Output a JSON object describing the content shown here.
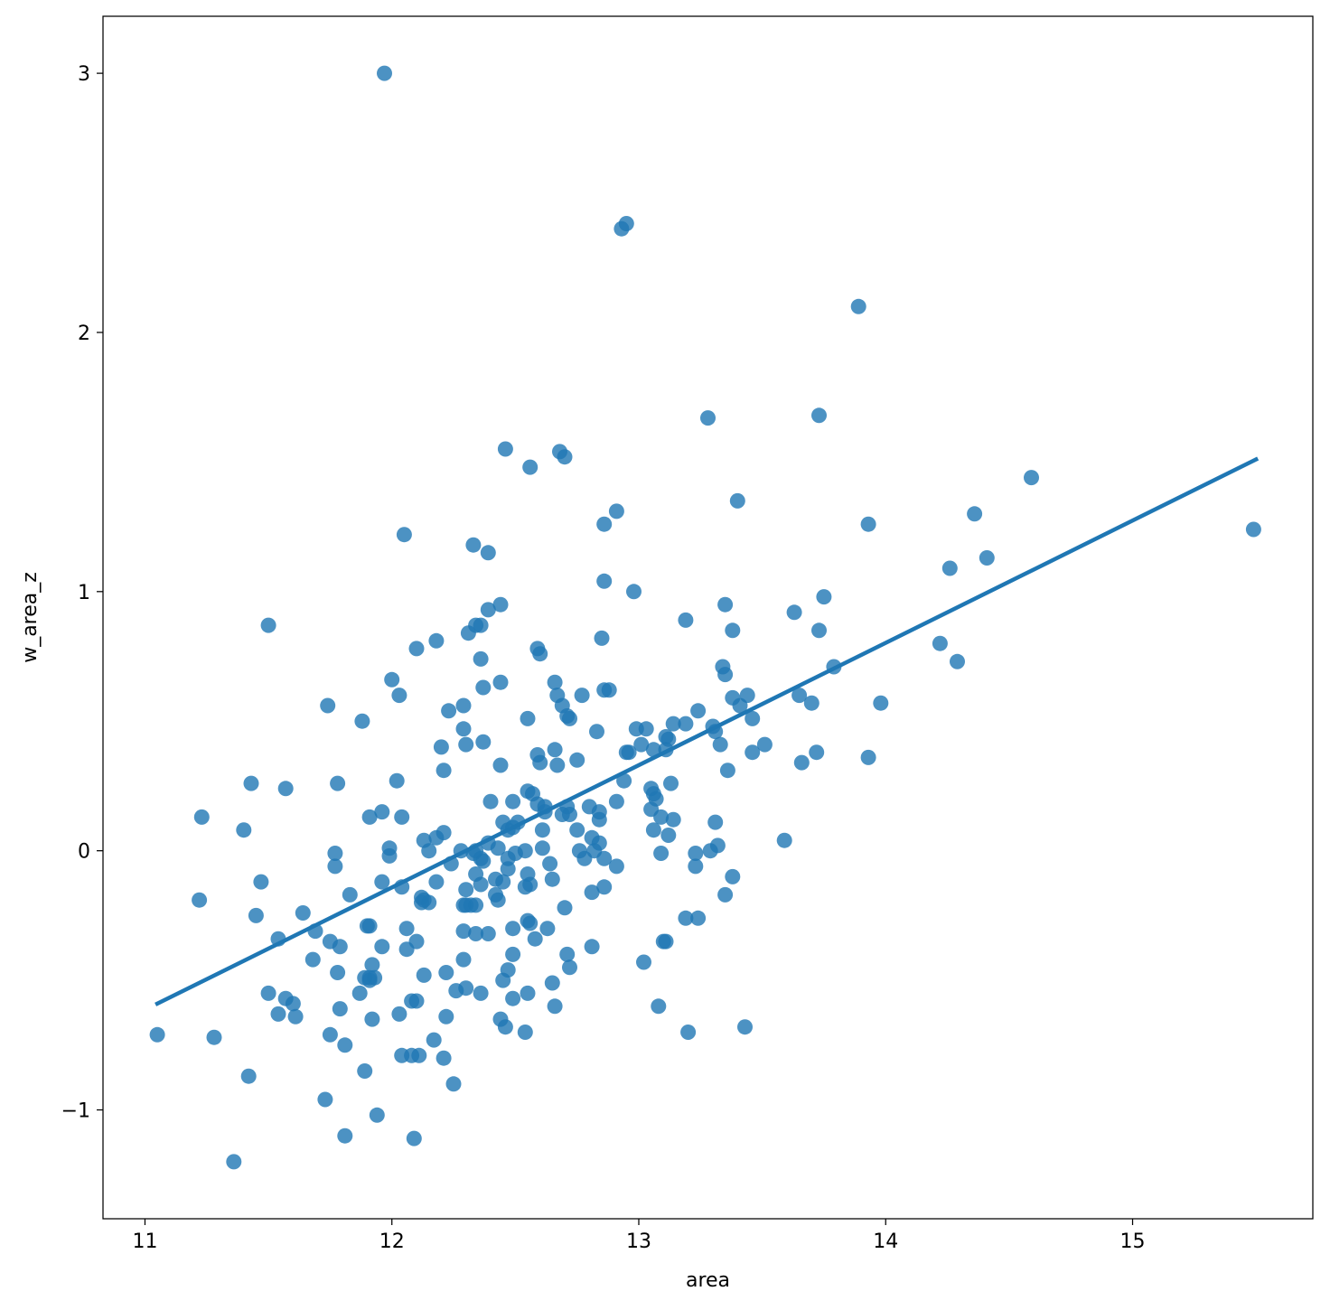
{
  "chart_data": {
    "type": "scatter",
    "xlabel": "area",
    "ylabel": "w_area_z",
    "xlim": [
      10.83,
      15.73
    ],
    "ylim": [
      -1.42,
      3.22
    ],
    "x_ticks": [
      11,
      12,
      13,
      14,
      15
    ],
    "y_ticks": [
      -1,
      0,
      1,
      2,
      3
    ],
    "x_tick_labels": [
      "11",
      "12",
      "13",
      "14",
      "15"
    ],
    "y_tick_labels": [
      "−1",
      "0",
      "1",
      "2",
      "3"
    ],
    "grid": false,
    "colors": {
      "points": "#1f77b4",
      "line": "#1f77b4"
    },
    "regression_line": {
      "x": [
        11.05,
        15.5
      ],
      "y": [
        -0.59,
        1.51
      ]
    },
    "points": [
      [
        11.97,
        3.0
      ],
      [
        12.93,
        2.4
      ],
      [
        12.95,
        2.42
      ],
      [
        13.89,
        2.1
      ],
      [
        13.28,
        1.67
      ],
      [
        13.73,
        1.68
      ],
      [
        12.46,
        1.55
      ],
      [
        12.68,
        1.54
      ],
      [
        12.7,
        1.52
      ],
      [
        12.56,
        1.48
      ],
      [
        14.59,
        1.44
      ],
      [
        13.4,
        1.35
      ],
      [
        12.91,
        1.31
      ],
      [
        14.36,
        1.3
      ],
      [
        12.86,
        1.26
      ],
      [
        13.93,
        1.26
      ],
      [
        15.49,
        1.24
      ],
      [
        12.05,
        1.22
      ],
      [
        12.33,
        1.18
      ],
      [
        12.39,
        1.15
      ],
      [
        14.41,
        1.13
      ],
      [
        14.26,
        1.09
      ],
      [
        12.86,
        1.04
      ],
      [
        12.98,
        1.0
      ],
      [
        13.75,
        0.98
      ],
      [
        13.35,
        0.95
      ],
      [
        12.44,
        0.95
      ],
      [
        12.39,
        0.93
      ],
      [
        13.63,
        0.92
      ],
      [
        13.19,
        0.89
      ],
      [
        11.5,
        0.87
      ],
      [
        12.34,
        0.87
      ],
      [
        12.36,
        0.87
      ],
      [
        13.38,
        0.85
      ],
      [
        13.73,
        0.85
      ],
      [
        12.31,
        0.84
      ],
      [
        12.85,
        0.82
      ],
      [
        12.18,
        0.81
      ],
      [
        14.22,
        0.8
      ],
      [
        12.1,
        0.78
      ],
      [
        12.59,
        0.78
      ],
      [
        12.6,
        0.76
      ],
      [
        12.36,
        0.74
      ],
      [
        14.29,
        0.73
      ],
      [
        13.79,
        0.71
      ],
      [
        13.34,
        0.71
      ],
      [
        13.35,
        0.68
      ],
      [
        12.0,
        0.66
      ],
      [
        12.66,
        0.65
      ],
      [
        12.44,
        0.65
      ],
      [
        12.37,
        0.63
      ],
      [
        12.86,
        0.62
      ],
      [
        12.88,
        0.62
      ],
      [
        12.67,
        0.6
      ],
      [
        12.77,
        0.6
      ],
      [
        13.44,
        0.6
      ],
      [
        13.65,
        0.6
      ],
      [
        12.03,
        0.6
      ],
      [
        13.38,
        0.59
      ],
      [
        11.74,
        0.56
      ],
      [
        12.69,
        0.56
      ],
      [
        13.98,
        0.57
      ],
      [
        13.7,
        0.57
      ],
      [
        13.41,
        0.56
      ],
      [
        12.29,
        0.56
      ],
      [
        12.23,
        0.54
      ],
      [
        13.24,
        0.54
      ],
      [
        12.71,
        0.52
      ],
      [
        12.72,
        0.51
      ],
      [
        12.55,
        0.51
      ],
      [
        13.46,
        0.51
      ],
      [
        11.88,
        0.5
      ],
      [
        13.14,
        0.49
      ],
      [
        13.19,
        0.49
      ],
      [
        13.3,
        0.48
      ],
      [
        12.99,
        0.47
      ],
      [
        13.03,
        0.47
      ],
      [
        12.29,
        0.47
      ],
      [
        12.83,
        0.46
      ],
      [
        13.31,
        0.46
      ],
      [
        13.11,
        0.44
      ],
      [
        13.12,
        0.43
      ],
      [
        12.3,
        0.41
      ],
      [
        12.37,
        0.42
      ],
      [
        13.51,
        0.41
      ],
      [
        13.33,
        0.41
      ],
      [
        13.01,
        0.41
      ],
      [
        12.2,
        0.4
      ],
      [
        12.66,
        0.39
      ],
      [
        12.96,
        0.38
      ],
      [
        12.95,
        0.38
      ],
      [
        13.11,
        0.39
      ],
      [
        13.06,
        0.39
      ],
      [
        12.59,
        0.37
      ],
      [
        13.46,
        0.38
      ],
      [
        13.72,
        0.38
      ],
      [
        12.75,
        0.35
      ],
      [
        13.93,
        0.36
      ],
      [
        12.6,
        0.34
      ],
      [
        12.67,
        0.33
      ],
      [
        12.44,
        0.33
      ],
      [
        13.66,
        0.34
      ],
      [
        12.21,
        0.31
      ],
      [
        13.36,
        0.31
      ],
      [
        11.43,
        0.26
      ],
      [
        11.78,
        0.26
      ],
      [
        12.02,
        0.27
      ],
      [
        12.94,
        0.27
      ],
      [
        13.13,
        0.26
      ],
      [
        11.57,
        0.24
      ],
      [
        13.05,
        0.24
      ],
      [
        12.55,
        0.23
      ],
      [
        12.57,
        0.22
      ],
      [
        13.06,
        0.22
      ],
      [
        13.07,
        0.2
      ],
      [
        12.4,
        0.19
      ],
      [
        12.49,
        0.19
      ],
      [
        12.91,
        0.19
      ],
      [
        12.59,
        0.18
      ],
      [
        12.62,
        0.17
      ],
      [
        12.8,
        0.17
      ],
      [
        12.71,
        0.17
      ],
      [
        13.05,
        0.16
      ],
      [
        12.84,
        0.15
      ],
      [
        12.62,
        0.15
      ],
      [
        12.69,
        0.14
      ],
      [
        11.23,
        0.13
      ],
      [
        11.91,
        0.13
      ],
      [
        11.96,
        0.15
      ],
      [
        12.04,
        0.13
      ],
      [
        13.09,
        0.13
      ],
      [
        13.14,
        0.12
      ],
      [
        12.72,
        0.14
      ],
      [
        12.84,
        0.12
      ],
      [
        12.45,
        0.11
      ],
      [
        12.51,
        0.11
      ],
      [
        13.31,
        0.11
      ],
      [
        11.4,
        0.08
      ],
      [
        12.47,
        0.08
      ],
      [
        12.49,
        0.09
      ],
      [
        12.61,
        0.08
      ],
      [
        12.75,
        0.08
      ],
      [
        13.06,
        0.08
      ],
      [
        12.18,
        0.05
      ],
      [
        12.21,
        0.07
      ],
      [
        12.13,
        0.04
      ],
      [
        12.81,
        0.05
      ],
      [
        12.39,
        0.03
      ],
      [
        13.12,
        0.06
      ],
      [
        13.59,
        0.04
      ],
      [
        12.84,
        0.03
      ],
      [
        13.32,
        0.02
      ],
      [
        11.99,
        0.01
      ],
      [
        12.43,
        0.01
      ],
      [
        12.54,
        0.0
      ],
      [
        12.76,
        0.0
      ],
      [
        12.82,
        0.0
      ],
      [
        12.61,
        0.01
      ],
      [
        13.29,
        0.0
      ],
      [
        12.15,
        0.0
      ],
      [
        12.28,
        0.0
      ],
      [
        12.34,
        0.0
      ],
      [
        11.77,
        -0.01
      ],
      [
        11.99,
        -0.02
      ],
      [
        12.36,
        -0.03
      ],
      [
        12.47,
        -0.03
      ],
      [
        12.86,
        -0.03
      ],
      [
        12.78,
        -0.03
      ],
      [
        13.09,
        -0.01
      ],
      [
        13.23,
        -0.01
      ],
      [
        12.33,
        -0.01
      ],
      [
        12.5,
        -0.01
      ],
      [
        12.37,
        -0.04
      ],
      [
        12.24,
        -0.05
      ],
      [
        12.64,
        -0.05
      ],
      [
        11.77,
        -0.06
      ],
      [
        12.47,
        -0.07
      ],
      [
        12.91,
        -0.06
      ],
      [
        13.23,
        -0.06
      ],
      [
        12.34,
        -0.09
      ],
      [
        12.55,
        -0.09
      ],
      [
        12.42,
        -0.11
      ],
      [
        11.47,
        -0.12
      ],
      [
        11.96,
        -0.12
      ],
      [
        12.18,
        -0.12
      ],
      [
        12.56,
        -0.13
      ],
      [
        12.36,
        -0.13
      ],
      [
        12.65,
        -0.11
      ],
      [
        13.38,
        -0.1
      ],
      [
        12.45,
        -0.12
      ],
      [
        12.04,
        -0.14
      ],
      [
        12.3,
        -0.15
      ],
      [
        12.54,
        -0.14
      ],
      [
        12.86,
        -0.14
      ],
      [
        11.22,
        -0.19
      ],
      [
        11.83,
        -0.17
      ],
      [
        12.12,
        -0.18
      ],
      [
        12.13,
        -0.19
      ],
      [
        12.81,
        -0.16
      ],
      [
        13.35,
        -0.17
      ],
      [
        12.12,
        -0.2
      ],
      [
        12.15,
        -0.2
      ],
      [
        12.43,
        -0.19
      ],
      [
        12.42,
        -0.17
      ],
      [
        12.3,
        -0.21
      ],
      [
        12.32,
        -0.21
      ],
      [
        12.29,
        -0.21
      ],
      [
        12.7,
        -0.22
      ],
      [
        12.34,
        -0.21
      ],
      [
        11.45,
        -0.25
      ],
      [
        11.64,
        -0.24
      ],
      [
        12.55,
        -0.27
      ],
      [
        12.56,
        -0.28
      ],
      [
        13.19,
        -0.26
      ],
      [
        13.24,
        -0.26
      ],
      [
        11.9,
        -0.29
      ],
      [
        11.91,
        -0.29
      ],
      [
        12.06,
        -0.3
      ],
      [
        12.63,
        -0.3
      ],
      [
        11.69,
        -0.31
      ],
      [
        12.29,
        -0.31
      ],
      [
        12.49,
        -0.3
      ],
      [
        12.34,
        -0.32
      ],
      [
        12.39,
        -0.32
      ],
      [
        12.58,
        -0.34
      ],
      [
        11.54,
        -0.34
      ],
      [
        11.75,
        -0.35
      ],
      [
        12.1,
        -0.35
      ],
      [
        11.79,
        -0.37
      ],
      [
        11.96,
        -0.37
      ],
      [
        12.06,
        -0.38
      ],
      [
        12.81,
        -0.37
      ],
      [
        13.1,
        -0.35
      ],
      [
        13.11,
        -0.35
      ],
      [
        12.49,
        -0.4
      ],
      [
        12.71,
        -0.4
      ],
      [
        11.68,
        -0.42
      ],
      [
        11.92,
        -0.44
      ],
      [
        12.29,
        -0.42
      ],
      [
        13.02,
        -0.43
      ],
      [
        12.72,
        -0.45
      ],
      [
        12.47,
        -0.46
      ],
      [
        11.78,
        -0.47
      ],
      [
        12.13,
        -0.48
      ],
      [
        12.22,
        -0.47
      ],
      [
        11.89,
        -0.49
      ],
      [
        11.91,
        -0.49
      ],
      [
        11.93,
        -0.49
      ],
      [
        12.45,
        -0.5
      ],
      [
        12.65,
        -0.51
      ],
      [
        11.91,
        -0.5
      ],
      [
        12.3,
        -0.53
      ],
      [
        12.26,
        -0.54
      ],
      [
        12.36,
        -0.55
      ],
      [
        12.55,
        -0.55
      ],
      [
        11.5,
        -0.55
      ],
      [
        11.87,
        -0.55
      ],
      [
        12.49,
        -0.57
      ],
      [
        11.57,
        -0.57
      ],
      [
        11.6,
        -0.59
      ],
      [
        12.08,
        -0.58
      ],
      [
        12.1,
        -0.58
      ],
      [
        12.66,
        -0.6
      ],
      [
        13.08,
        -0.6
      ],
      [
        11.79,
        -0.61
      ],
      [
        11.54,
        -0.63
      ],
      [
        12.03,
        -0.63
      ],
      [
        11.61,
        -0.64
      ],
      [
        11.92,
        -0.65
      ],
      [
        12.22,
        -0.64
      ],
      [
        12.44,
        -0.65
      ],
      [
        12.46,
        -0.68
      ],
      [
        13.43,
        -0.68
      ],
      [
        11.05,
        -0.71
      ],
      [
        11.28,
        -0.72
      ],
      [
        11.75,
        -0.71
      ],
      [
        12.54,
        -0.7
      ],
      [
        13.2,
        -0.7
      ],
      [
        12.17,
        -0.73
      ],
      [
        11.81,
        -0.75
      ],
      [
        12.04,
        -0.79
      ],
      [
        12.08,
        -0.79
      ],
      [
        12.11,
        -0.79
      ],
      [
        12.21,
        -0.8
      ],
      [
        11.89,
        -0.85
      ],
      [
        11.42,
        -0.87
      ],
      [
        12.25,
        -0.9
      ],
      [
        11.73,
        -0.96
      ],
      [
        11.94,
        -1.02
      ],
      [
        11.81,
        -1.1
      ],
      [
        12.09,
        -1.11
      ],
      [
        11.36,
        -1.2
      ]
    ]
  }
}
